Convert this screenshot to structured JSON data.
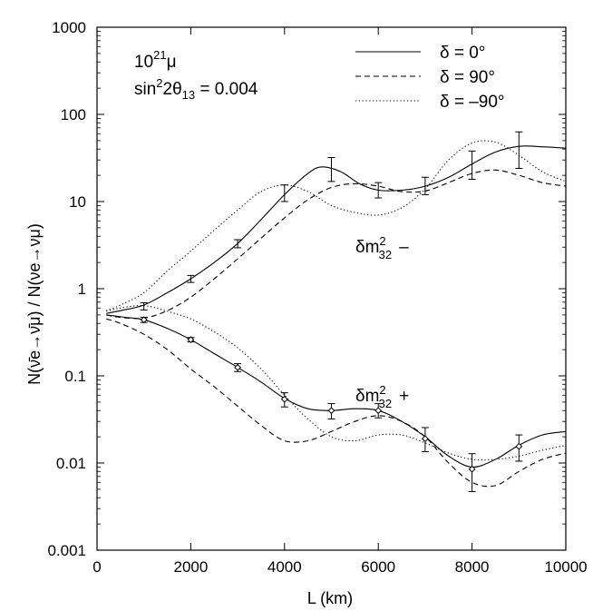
{
  "chart_data": {
    "type": "line",
    "title": "",
    "xlabel": "L (km)",
    "ylabel": "N(ν̄e→ν̄μ) / N(νe→νμ)",
    "xlim": [
      0,
      10000
    ],
    "ylim": [
      0.001,
      1000
    ],
    "yscale": "log",
    "grid": false,
    "legend_position": "top-right",
    "x_ticks": [
      0,
      2000,
      4000,
      6000,
      8000,
      10000
    ],
    "x_tick_labels": [
      "0",
      "2000",
      "4000",
      "6000",
      "8000",
      "10000"
    ],
    "y_ticks": [
      0.001,
      0.01,
      0.1,
      1,
      10,
      100,
      1000
    ],
    "y_tick_labels": [
      "0.001",
      "0.01",
      "0.1",
      "1",
      "10",
      "100",
      "1000"
    ],
    "annotations": {
      "muons_base": "10",
      "muons_exp": "21",
      "muons_unit": "μ",
      "sin_text": "sin",
      "sin_sup": "2",
      "sin_mid": "2θ",
      "sin_sub": "13",
      "sin_value": " = 0.004",
      "dm_minus_base": "δm",
      "dm_minus_sup": "2",
      "dm_minus_sub": "32",
      "dm_minus_sign": "–",
      "dm_plus_base": "δm",
      "dm_plus_sup": "2",
      "dm_plus_sub": "32",
      "dm_plus_sign": "+"
    },
    "series": [
      {
        "name": "δ = 0°",
        "style": "solid",
        "branch": "δm²32 −",
        "x": [
          200,
          500,
          1000,
          1500,
          2000,
          2500,
          3000,
          3500,
          4000,
          4500,
          4800,
          5200,
          5600,
          6000,
          6500,
          7000,
          7500,
          8000,
          8500,
          9000,
          9500,
          10000
        ],
        "y": [
          0.52,
          0.56,
          0.65,
          0.9,
          1.3,
          2.0,
          3.3,
          6.2,
          12.0,
          21.0,
          25.0,
          22.0,
          16.0,
          13.5,
          13.5,
          15.0,
          19.0,
          27.0,
          37.0,
          43.0,
          42.5,
          41.0
        ]
      },
      {
        "name": "δ = 90°",
        "style": "dashed",
        "branch": "δm²32 −",
        "x": [
          200,
          500,
          1000,
          1500,
          2000,
          2500,
          3000,
          3500,
          4000,
          4500,
          5000,
          5500,
          6000,
          6500,
          7000,
          7500,
          8000,
          8500,
          9000,
          9500,
          10000
        ],
        "y": [
          0.5,
          0.47,
          0.46,
          0.56,
          0.8,
          1.3,
          2.2,
          3.8,
          6.5,
          10.5,
          14.5,
          16.0,
          15.0,
          13.0,
          13.2,
          16.5,
          21.0,
          23.0,
          20.0,
          16.5,
          15.0
        ]
      },
      {
        "name": "δ = –90°",
        "style": "dotted",
        "branch": "δm²32 −",
        "x": [
          200,
          500,
          1000,
          1500,
          2000,
          2500,
          3000,
          3500,
          4000,
          4500,
          5000,
          5500,
          6000,
          6500,
          7000,
          7500,
          8000,
          8500,
          9000,
          9500,
          10000
        ],
        "y": [
          0.56,
          0.65,
          0.9,
          1.6,
          2.7,
          4.7,
          8.0,
          13.0,
          15.5,
          13.0,
          9.0,
          7.5,
          7.0,
          8.5,
          14.0,
          30.0,
          47.0,
          48.0,
          34.0,
          22.0,
          17.0
        ]
      },
      {
        "name": "δ = 0°",
        "style": "solid",
        "branch": "δm²32 +",
        "x": [
          200,
          600,
          1000,
          1500,
          2000,
          2500,
          3000,
          3500,
          4000,
          4500,
          5000,
          5500,
          6000,
          6500,
          7000,
          7500,
          8000,
          8500,
          9000,
          9500,
          10000
        ],
        "y": [
          0.5,
          0.47,
          0.44,
          0.35,
          0.26,
          0.18,
          0.125,
          0.085,
          0.055,
          0.042,
          0.04,
          0.042,
          0.04,
          0.03,
          0.02,
          0.012,
          0.009,
          0.011,
          0.016,
          0.021,
          0.023
        ]
      },
      {
        "name": "δ = 90°",
        "style": "dashed",
        "branch": "δm²32 +",
        "x": [
          200,
          500,
          1000,
          1500,
          2000,
          2500,
          3000,
          3500,
          4000,
          4500,
          5000,
          5500,
          6000,
          6500,
          7000,
          7500,
          8000,
          8500,
          9000,
          9500,
          10000
        ],
        "y": [
          0.45,
          0.4,
          0.3,
          0.2,
          0.12,
          0.075,
          0.045,
          0.027,
          0.018,
          0.018,
          0.023,
          0.03,
          0.035,
          0.03,
          0.02,
          0.01,
          0.006,
          0.0055,
          0.008,
          0.011,
          0.013
        ]
      },
      {
        "name": "δ = –90°",
        "style": "dotted",
        "branch": "δm²32 +",
        "x": [
          200,
          500,
          1000,
          1500,
          2000,
          2500,
          3000,
          3500,
          4000,
          4500,
          5000,
          5500,
          6000,
          6500,
          7000,
          7500,
          8000,
          8500,
          9000,
          9500,
          10000
        ],
        "y": [
          0.55,
          0.6,
          0.64,
          0.55,
          0.45,
          0.32,
          0.21,
          0.12,
          0.06,
          0.032,
          0.02,
          0.018,
          0.021,
          0.021,
          0.017,
          0.013,
          0.011,
          0.011,
          0.012,
          0.014,
          0.016
        ]
      }
    ],
    "error_bars": [
      {
        "name": "δm²32 − data",
        "marker": "none",
        "x": [
          1000,
          2000,
          3000,
          4000,
          5000,
          6000,
          7000,
          8000,
          9000
        ],
        "y": [
          0.63,
          1.3,
          3.3,
          12.5,
          24.0,
          13.5,
          15.0,
          27.0,
          42.0
        ],
        "low": [
          0.57,
          1.18,
          2.95,
          10.0,
          17.0,
          11.0,
          12.0,
          18.0,
          24.0
        ],
        "high": [
          0.69,
          1.42,
          3.65,
          15.5,
          32.0,
          16.5,
          19.0,
          38.0,
          63.0
        ]
      },
      {
        "name": "δm²32 + data",
        "marker": "diamond",
        "x": [
          1000,
          2000,
          3000,
          4000,
          5000,
          6000,
          7000,
          8000,
          9000
        ],
        "y": [
          0.44,
          0.26,
          0.125,
          0.054,
          0.04,
          0.04,
          0.019,
          0.0085,
          0.0155
        ],
        "low": [
          0.41,
          0.245,
          0.112,
          0.044,
          0.032,
          0.033,
          0.0135,
          0.0047,
          0.0105
        ],
        "high": [
          0.47,
          0.275,
          0.138,
          0.064,
          0.048,
          0.048,
          0.0255,
          0.0128,
          0.021
        ]
      }
    ]
  }
}
